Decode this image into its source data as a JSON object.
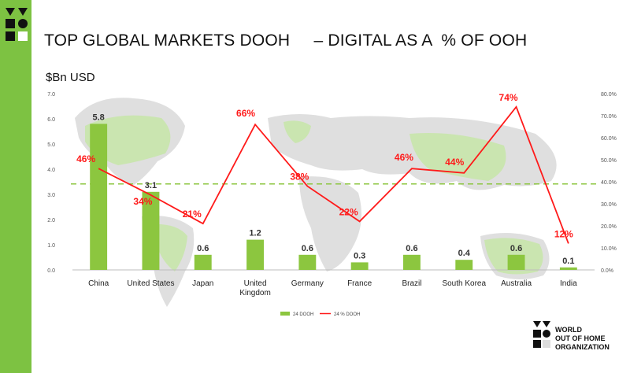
{
  "slide": {
    "title": "TOP GLOBAL MARKETS DOOH     – DIGITAL AS A  % OF OOH",
    "unit_label": "$Bn USD",
    "org_name_lines": [
      "WORLD",
      "OUT OF HOME",
      "ORGANIZATION"
    ]
  },
  "chart_data": {
    "type": "bar",
    "categories": [
      "China",
      "United States",
      "Japan",
      "United Kingdom",
      "Germany",
      "France",
      "Brazil",
      "South Korea",
      "Australia",
      "India"
    ],
    "series": [
      {
        "name": "24 DOOH",
        "type": "bar",
        "axis": "left",
        "values": [
          5.8,
          3.1,
          0.6,
          1.2,
          0.6,
          0.3,
          0.6,
          0.4,
          0.6,
          0.1
        ],
        "labels": [
          "5.8",
          "3.1",
          "0.6",
          "1.2",
          "0.6",
          "0.3",
          "0.6",
          "0.4",
          "0.6",
          "0.1"
        ]
      },
      {
        "name": "24 % DOOH",
        "type": "line",
        "axis": "right",
        "values": [
          46,
          34,
          21,
          66,
          38,
          22,
          46,
          44,
          74,
          12
        ],
        "labels": [
          "46%",
          "34%",
          "21%",
          "66%",
          "38%",
          "22%",
          "46%",
          "44%",
          "74%",
          "12%"
        ]
      }
    ],
    "y_left": {
      "ticks": [
        "0.0",
        "1.0",
        "2.0",
        "3.0",
        "4.0",
        "5.0",
        "6.0",
        "7.0"
      ],
      "range": [
        0,
        7
      ]
    },
    "y_right": {
      "ticks": [
        "0.0%",
        "10.0%",
        "20.0%",
        "30.0%",
        "40.0%",
        "50.0%",
        "60.0%",
        "70.0%",
        "80.0%"
      ],
      "range": [
        0,
        80
      ]
    },
    "reference_line_percent": 39,
    "legend_placement": "bottom",
    "colors": {
      "bar": "#8cc63f",
      "line": "#ff1a1a",
      "label_line": "#ff1a1a",
      "label_bar": "#333333",
      "reference": "#8cc63f",
      "map": "#d9d9d9",
      "map_green": "#c7e6a8"
    }
  }
}
